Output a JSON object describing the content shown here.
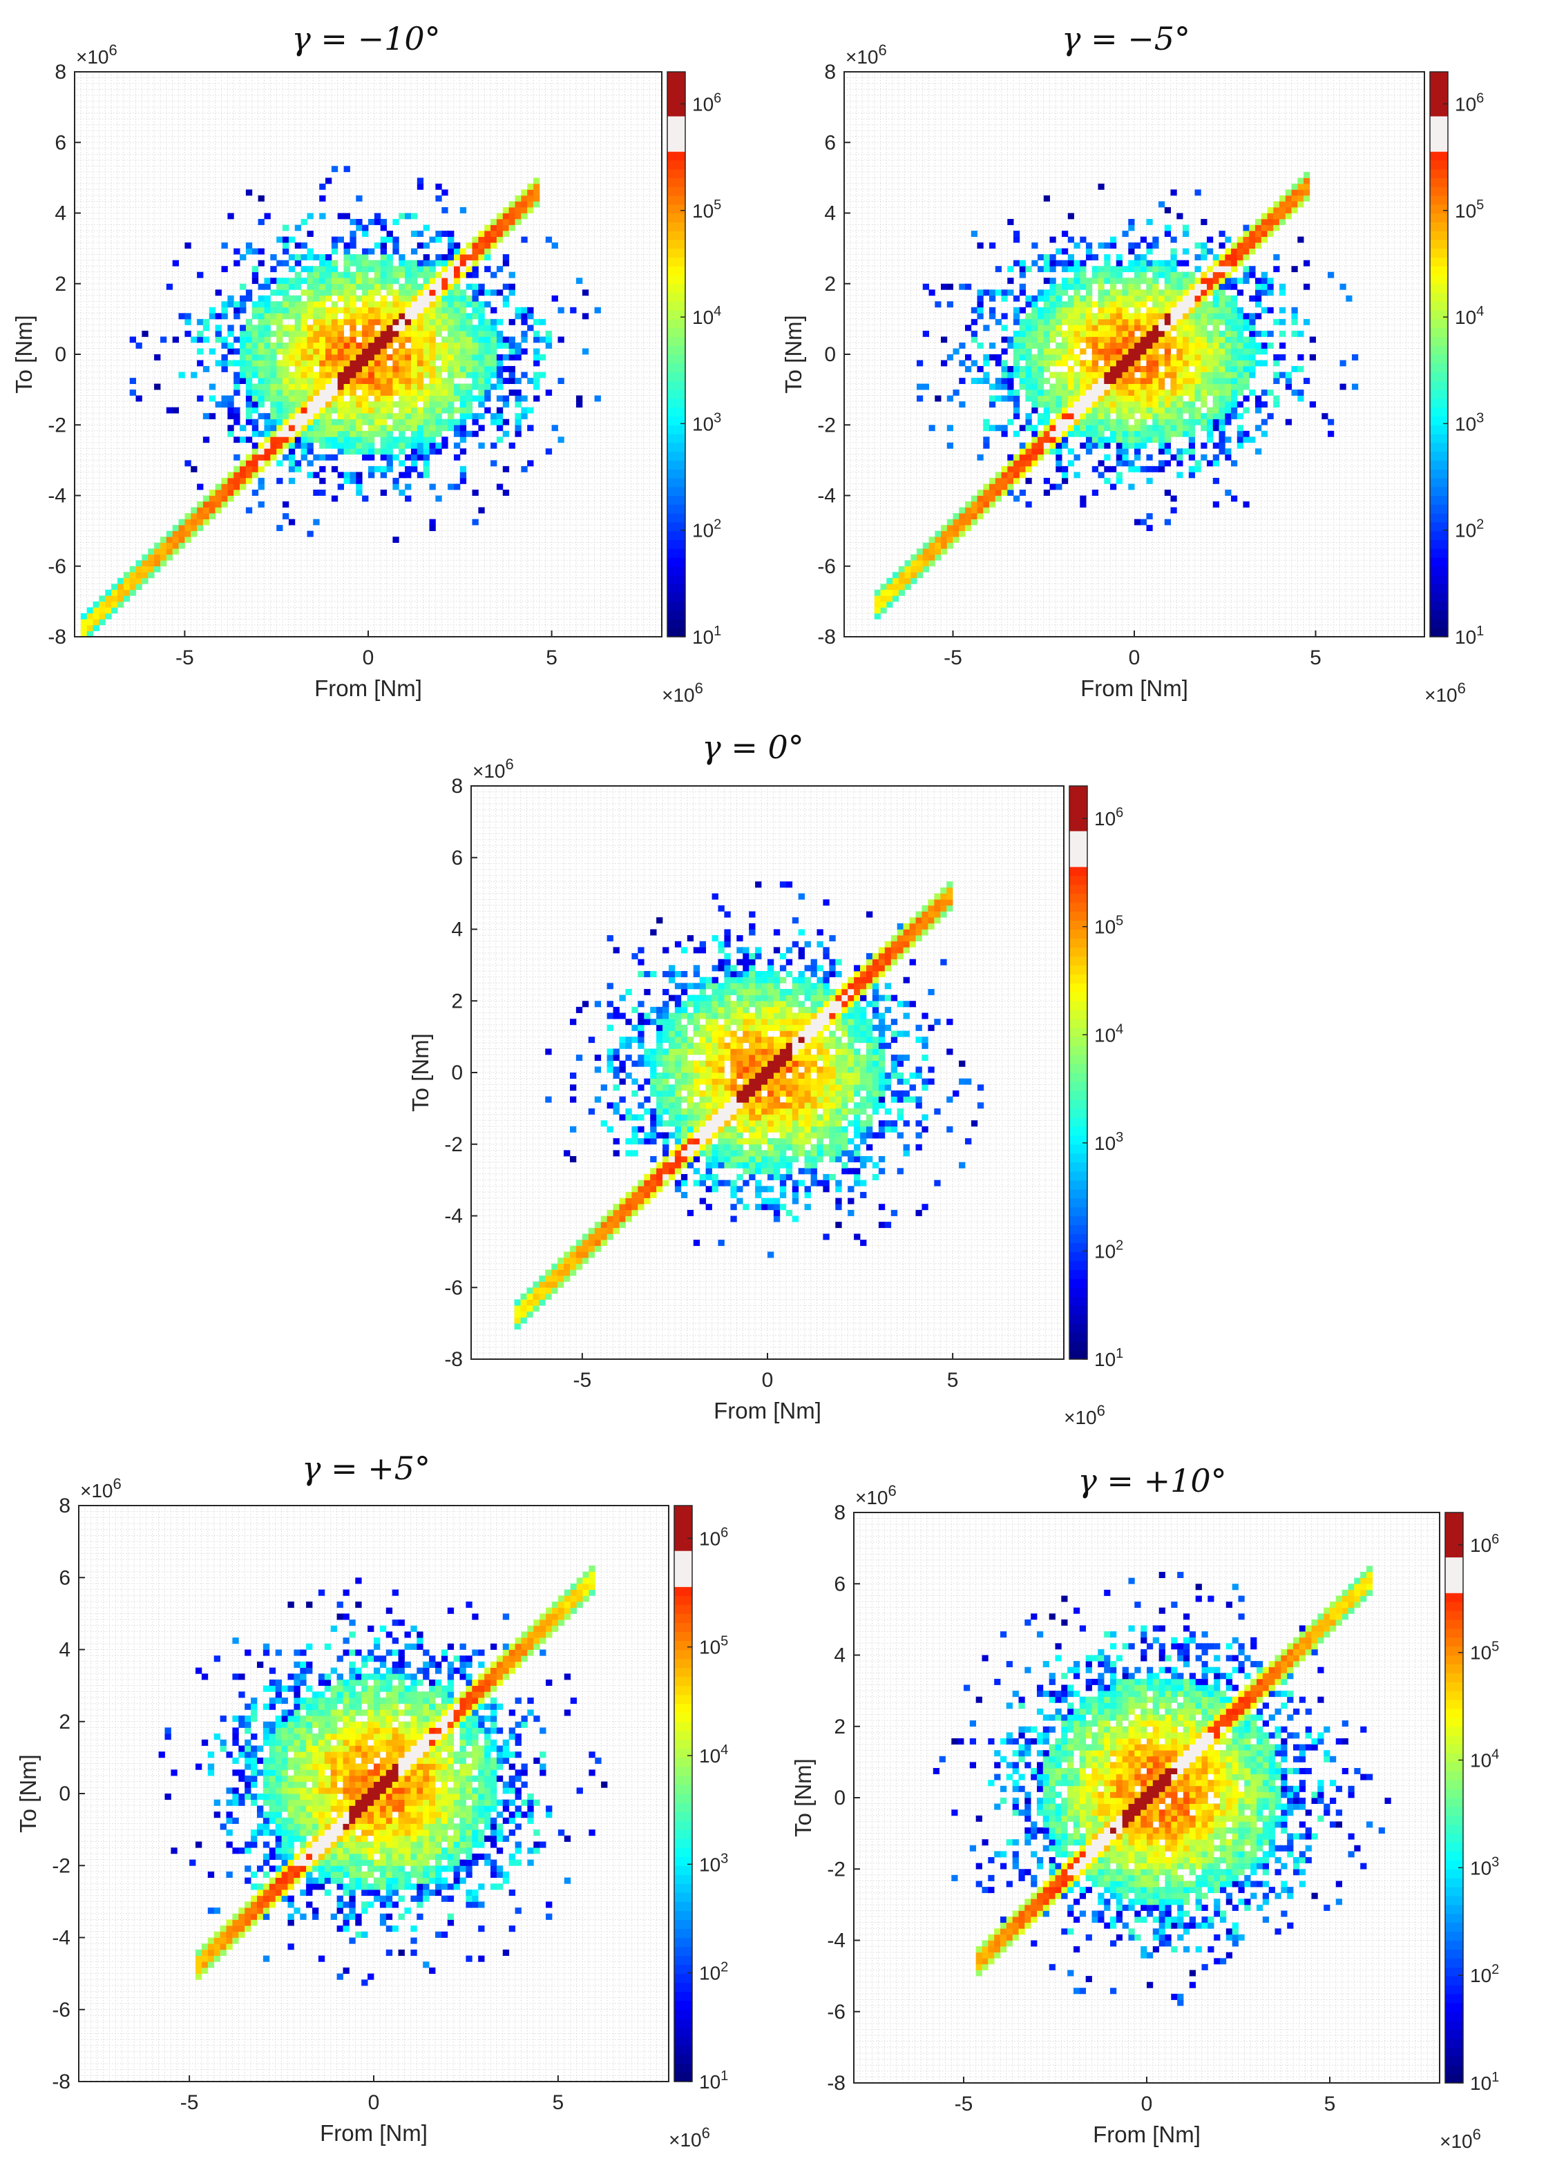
{
  "chart_data": [
    {
      "type": "heatmap",
      "title": "γ = −10°",
      "xlabel": "From [Nm]",
      "ylabel": "To [Nm]",
      "x_multiplier": "×10",
      "x_multiplier_exp": "6",
      "y_multiplier": "×10",
      "y_multiplier_exp": "6",
      "xlim": [
        -8,
        8
      ],
      "ylim": [
        -8,
        8
      ],
      "x_ticks": [
        "-5",
        "0",
        "5"
      ],
      "x_tick_values": [
        -5,
        0,
        5
      ],
      "y_ticks": [
        "8",
        "6",
        "4",
        "2",
        "0",
        "-2",
        "-4",
        "-6",
        "-8"
      ],
      "y_tick_values": [
        8,
        6,
        4,
        2,
        0,
        -2,
        -4,
        -6,
        -8
      ],
      "colorbar": {
        "scale": "log",
        "range": [
          10,
          2000000
        ],
        "ticks": [
          "10",
          "10",
          "10",
          "10",
          "10",
          "10"
        ],
        "tick_exps": [
          "1",
          "2",
          "3",
          "4",
          "5",
          "6"
        ]
      },
      "shape": {
        "diag_lo": -7.8,
        "diag_hi": 4.6,
        "core_hx": 3.5,
        "core_hy": 2.8,
        "shift_x": 0,
        "shift_y": 0,
        "spread": 4.2
      },
      "seed": 11
    },
    {
      "type": "heatmap",
      "title": "γ = −5°",
      "xlabel": "From [Nm]",
      "ylabel": "To [Nm]",
      "x_multiplier": "×10",
      "x_multiplier_exp": "6",
      "y_multiplier": "×10",
      "y_multiplier_exp": "6",
      "xlim": [
        -8,
        8
      ],
      "ylim": [
        -8,
        8
      ],
      "x_ticks": [
        "-5",
        "0",
        "5"
      ],
      "x_tick_values": [
        -5,
        0,
        5
      ],
      "y_ticks": [
        "8",
        "6",
        "4",
        "2",
        "0",
        "-2",
        "-4",
        "-6",
        "-8"
      ],
      "y_tick_values": [
        8,
        6,
        4,
        2,
        0,
        -2,
        -4,
        -6,
        -8
      ],
      "colorbar": {
        "scale": "log",
        "range": [
          10,
          2000000
        ],
        "ticks": [
          "10",
          "10",
          "10",
          "10",
          "10",
          "10"
        ],
        "tick_exps": [
          "1",
          "2",
          "3",
          "4",
          "5",
          "6"
        ]
      },
      "shape": {
        "diag_lo": -7.2,
        "diag_hi": 4.8,
        "core_hx": 3.3,
        "core_hy": 2.6,
        "shift_x": 0,
        "shift_y": 0,
        "spread": 4.0
      },
      "seed": 23
    },
    {
      "type": "heatmap",
      "title": "γ = 0°",
      "xlabel": "From [Nm]",
      "ylabel": "To [Nm]",
      "x_multiplier": "×10",
      "x_multiplier_exp": "6",
      "y_multiplier": "×10",
      "y_multiplier_exp": "6",
      "xlim": [
        -8,
        8
      ],
      "ylim": [
        -8,
        8
      ],
      "x_ticks": [
        "-5",
        "0",
        "5"
      ],
      "x_tick_values": [
        -5,
        0,
        5
      ],
      "y_ticks": [
        "8",
        "6",
        "4",
        "2",
        "0",
        "-2",
        "-4",
        "-6",
        "-8"
      ],
      "y_tick_values": [
        8,
        6,
        4,
        2,
        0,
        -2,
        -4,
        -6,
        -8
      ],
      "colorbar": {
        "scale": "log",
        "range": [
          10,
          2000000
        ],
        "ticks": [
          "10",
          "10",
          "10",
          "10",
          "10",
          "10"
        ],
        "tick_exps": [
          "1",
          "2",
          "3",
          "4",
          "5",
          "6"
        ]
      },
      "shape": {
        "diag_lo": -6.9,
        "diag_hi": 5.0,
        "core_hx": 3.2,
        "core_hy": 2.8,
        "shift_x": 0,
        "shift_y": 0,
        "spread": 4.0
      },
      "seed": 37
    },
    {
      "type": "heatmap",
      "title": "γ = +5°",
      "xlabel": "From [Nm]",
      "ylabel": "To [Nm]",
      "x_multiplier": "×10",
      "x_multiplier_exp": "6",
      "y_multiplier": "×10",
      "y_multiplier_exp": "6",
      "xlim": [
        -8,
        8
      ],
      "ylim": [
        -8,
        8
      ],
      "x_ticks": [
        "-5",
        "0",
        "5"
      ],
      "x_tick_values": [
        -5,
        0,
        5
      ],
      "y_ticks": [
        "8",
        "6",
        "4",
        "2",
        "0",
        "-2",
        "-4",
        "-6",
        "-8"
      ],
      "y_tick_values": [
        8,
        6,
        4,
        2,
        0,
        -2,
        -4,
        -6,
        -8
      ],
      "colorbar": {
        "scale": "log",
        "range": [
          10,
          2000000
        ],
        "ticks": [
          "10",
          "10",
          "10",
          "10",
          "10",
          "10"
        ],
        "tick_exps": [
          "1",
          "2",
          "3",
          "4",
          "5",
          "6"
        ]
      },
      "shape": {
        "diag_lo": -4.8,
        "diag_hi": 6.0,
        "core_hx": 3.2,
        "core_hy": 3.0,
        "shift_x": 0.2,
        "shift_y": 0.3,
        "spread": 4.0
      },
      "seed": 53
    },
    {
      "type": "heatmap",
      "title": "γ = +10°",
      "xlabel": "From [Nm]",
      "ylabel": "To [Nm]",
      "x_multiplier": "×10",
      "x_multiplier_exp": "6",
      "y_multiplier": "×10",
      "y_multiplier_exp": "6",
      "xlim": [
        -8,
        8
      ],
      "ylim": [
        -8,
        8
      ],
      "x_ticks": [
        "-5",
        "0",
        "5"
      ],
      "x_tick_values": [
        -5,
        0,
        5
      ],
      "y_ticks": [
        "8",
        "6",
        "4",
        "2",
        "0",
        "-2",
        "-4",
        "-6",
        "-8"
      ],
      "y_tick_values": [
        8,
        6,
        4,
        2,
        0,
        -2,
        -4,
        -6,
        -8
      ],
      "colorbar": {
        "scale": "log",
        "range": [
          10,
          2000000
        ],
        "ticks": [
          "10",
          "10",
          "10",
          "10",
          "10",
          "10"
        ],
        "tick_exps": [
          "1",
          "2",
          "3",
          "4",
          "5",
          "6"
        ]
      },
      "shape": {
        "diag_lo": -4.6,
        "diag_hi": 6.1,
        "core_hx": 3.3,
        "core_hy": 3.2,
        "shift_x": 0.4,
        "shift_y": 0.2,
        "spread": 4.2
      },
      "seed": 71
    }
  ]
}
